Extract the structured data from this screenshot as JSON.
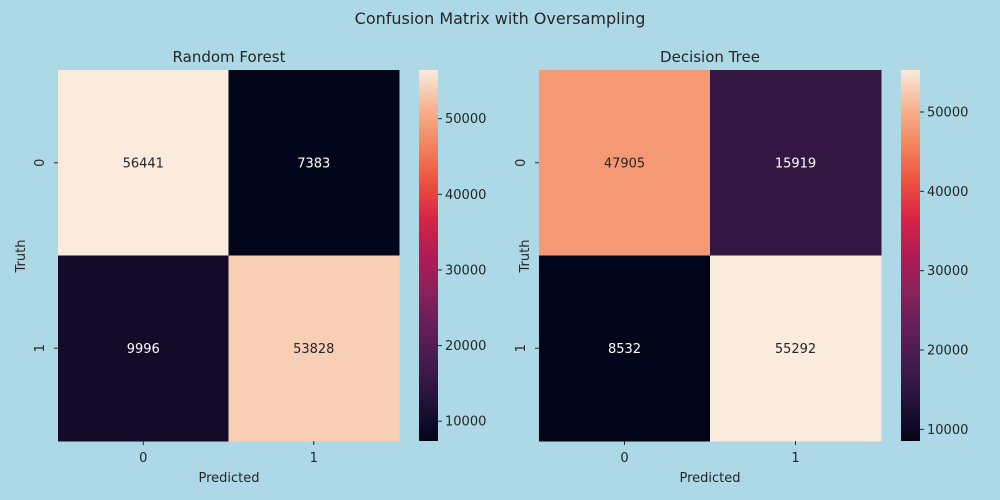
{
  "suptitle": "Confusion Matrix with Oversampling",
  "chart_data": [
    {
      "type": "heatmap",
      "title": "Random Forest",
      "xlabel": "Predicted",
      "ylabel": "Truth",
      "x_categories": [
        "0",
        "1"
      ],
      "y_categories": [
        "0",
        "1"
      ],
      "values": [
        [
          56441,
          7383
        ],
        [
          9996,
          53828
        ]
      ],
      "colormap": "rocket",
      "colorbar": {
        "vmin": 7383,
        "vmax": 56441,
        "ticks": [
          10000,
          20000,
          30000,
          40000,
          50000
        ],
        "tick_labels": [
          "10000",
          "20000",
          "30000",
          "40000",
          "50000"
        ]
      }
    },
    {
      "type": "heatmap",
      "title": "Decision Tree",
      "xlabel": "Predicted",
      "ylabel": "Truth",
      "x_categories": [
        "0",
        "1"
      ],
      "y_categories": [
        "0",
        "1"
      ],
      "values": [
        [
          47905,
          15919
        ],
        [
          8532,
          55292
        ]
      ],
      "colormap": "rocket",
      "colorbar": {
        "vmin": 8532,
        "vmax": 55292,
        "ticks": [
          10000,
          20000,
          30000,
          40000,
          50000
        ],
        "tick_labels": [
          "10000",
          "20000",
          "30000",
          "40000",
          "50000"
        ]
      }
    }
  ]
}
